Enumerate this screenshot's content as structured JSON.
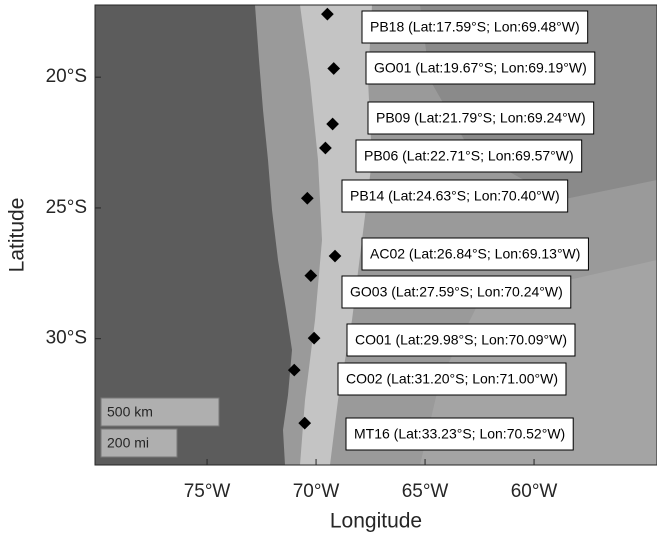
{
  "chart_data": {
    "type": "map",
    "xlabel": "Longitude",
    "ylabel": "Latitude",
    "xlim": [
      -80.14,
      -54.36
    ],
    "ylim": [
      -34.83,
      -17.24
    ],
    "xticks": [
      {
        "value": -75,
        "label": "75°W"
      },
      {
        "value": -70,
        "label": "70°W"
      },
      {
        "value": -65,
        "label": "65°W"
      },
      {
        "value": -60,
        "label": "60°W"
      }
    ],
    "yticks": [
      {
        "value": -30,
        "label": "30°S"
      },
      {
        "value": -25,
        "label": "25°S"
      },
      {
        "value": -20,
        "label": "20°S"
      }
    ],
    "x": [
      -69.48,
      -69.19,
      -69.24,
      -69.57,
      -70.4,
      -69.13,
      -70.24,
      -70.09,
      -71.0,
      -70.52
    ],
    "values": [
      -17.59,
      -19.67,
      -21.79,
      -22.71,
      -24.63,
      -26.84,
      -27.59,
      -29.98,
      -31.2,
      -33.23
    ],
    "value_labels": [
      "PB18 (Lat:17.59°S; Lon:69.48°W)",
      "GO01 (Lat:19.67°S; Lon:69.19°W)",
      "PB09 (Lat:21.79°S; Lon:69.24°W)",
      "PB06 (Lat:22.71°S; Lon:69.57°W)",
      "PB14 (Lat:24.63°S; Lon:70.40°W)",
      "AC02 (Lat:26.84°S; Lon:69.13°W)",
      "GO03 (Lat:27.59°S; Lon:70.24°W)",
      "CO01 (Lat:29.98°S; Lon:70.09°W)",
      "CO02 (Lat:31.20°S; Lon:71.00°W)",
      "MT16 (Lat:33.23°S; Lon:70.52°W)"
    ],
    "color": "#000000",
    "scale_bars": [
      "500 km",
      "200 mi"
    ]
  }
}
